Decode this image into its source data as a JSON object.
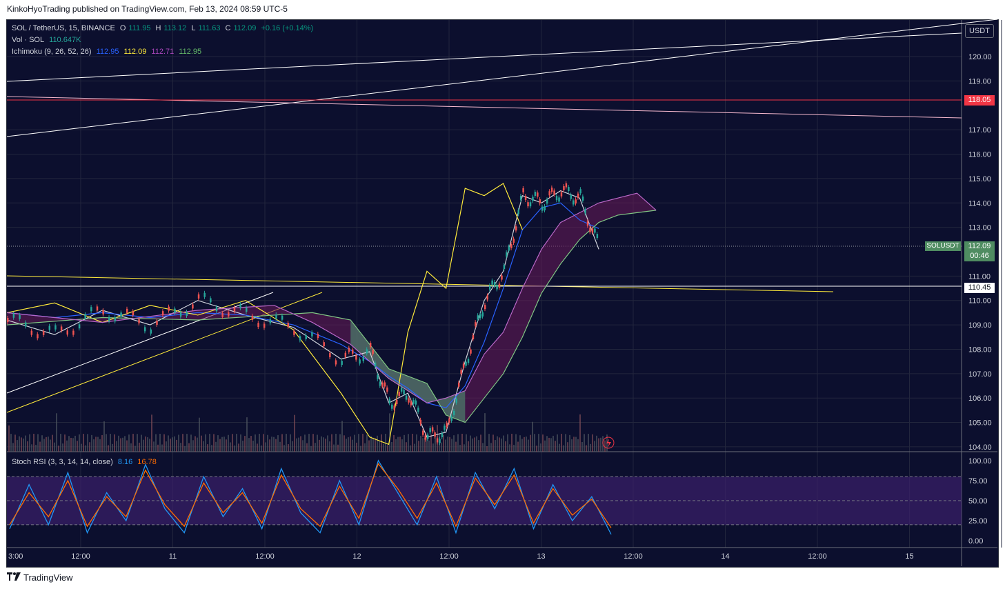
{
  "header": {
    "credit": "KinkoHyoTrading published on TradingView.com, Feb 13, 2024 08:59 UTC-5"
  },
  "legend": {
    "symbol": "SOL / TetherUS, 15, BINANCE",
    "o_label": "O",
    "o_value": "111.95",
    "h_label": "H",
    "h_value": "113.12",
    "l_label": "L",
    "l_value": "111.63",
    "c_label": "C",
    "c_value": "112.09",
    "change": "+0.16 (+0.14%)",
    "vol_label": "Vol · SOL",
    "vol_value": "110.647K",
    "ichimoku_label": "Ichimoku (9, 26, 52, 26)",
    "ichimoku_values": [
      "112.95",
      "112.09",
      "112.71",
      "112.95"
    ],
    "stoch_label": "Stoch RSI (3, 3, 14, 14, close)",
    "stoch_k": "8.16",
    "stoch_d": "16.78"
  },
  "currency_button": "USDT",
  "symbol_tag": "SOLUSDT",
  "badges": {
    "red_level": "118.05",
    "last_price": "112.09",
    "countdown": "00:46",
    "white_level": "110.45"
  },
  "footer": {
    "brand": "TradingView"
  },
  "chart_data": [
    {
      "type": "line",
      "title": "SOL / TetherUS, 15, BINANCE",
      "ylim": [
        103.8,
        121.5
      ],
      "y_ticks": [
        "120.00",
        "119.00",
        "117.00",
        "116.00",
        "115.00",
        "114.00",
        "113.00",
        "111.00",
        "110.00",
        "109.00",
        "108.00",
        "107.00",
        "106.00",
        "105.00",
        "104.00"
      ],
      "x_ticks": [
        "3:00",
        "12:00",
        "11",
        "12:00",
        "12",
        "12:00",
        "13",
        "12:00",
        "14",
        "12:00",
        "15"
      ],
      "grid": true,
      "series": [
        {
          "name": "price",
          "x": [
            0,
            0.05,
            0.1,
            0.15,
            0.2,
            0.25,
            0.3,
            0.35,
            0.38,
            0.4,
            0.42,
            0.44,
            0.46,
            0.48,
            0.5,
            0.52,
            0.54,
            0.56,
            0.58,
            0.6,
            0.62
          ],
          "values": [
            109.2,
            108.6,
            109.6,
            109.0,
            110.0,
            109.4,
            108.9,
            107.6,
            107.9,
            105.8,
            106.2,
            104.4,
            104.6,
            107.5,
            110.0,
            111.2,
            114.3,
            114.0,
            114.5,
            114.2,
            112.1
          ]
        },
        {
          "name": "kijun",
          "x": [
            0,
            0.05,
            0.1,
            0.15,
            0.2,
            0.25,
            0.3,
            0.35,
            0.38,
            0.4,
            0.42,
            0.44,
            0.46,
            0.48,
            0.5,
            0.52,
            0.54,
            0.56,
            0.58,
            0.6,
            0.62
          ],
          "values": [
            109.5,
            109.3,
            109.5,
            109.3,
            109.5,
            109.4,
            109.0,
            108.2,
            107.5,
            106.9,
            106.4,
            105.8,
            105.6,
            106.5,
            108.3,
            110.5,
            112.9,
            113.8,
            114.0,
            113.3,
            112.95
          ]
        },
        {
          "name": "lagging",
          "x": [
            0,
            0.05,
            0.1,
            0.15,
            0.2,
            0.25,
            0.3,
            0.35,
            0.38,
            0.4,
            0.42,
            0.44,
            0.46,
            0.48,
            0.5,
            0.52,
            0.54
          ],
          "values": [
            109.5,
            109.9,
            109.1,
            109.8,
            109.4,
            110.0,
            108.8,
            106.2,
            104.4,
            104.1,
            108.7,
            111.2,
            110.5,
            114.6,
            114.3,
            114.8,
            112.9
          ]
        },
        {
          "name": "senkou_a",
          "x": [
            0,
            0.1,
            0.2,
            0.28,
            0.32,
            0.36,
            0.4,
            0.44,
            0.46,
            0.48,
            0.5,
            0.52,
            0.54,
            0.56,
            0.58,
            0.6,
            0.62,
            0.64,
            0.66,
            0.68
          ],
          "values": [
            109.0,
            109.3,
            109.2,
            109.4,
            109.5,
            109.2,
            107.2,
            106.6,
            105.3,
            105.0,
            106.0,
            107.0,
            108.5,
            110.3,
            111.5,
            112.5,
            113.2,
            113.5,
            113.6,
            113.7
          ]
        },
        {
          "name": "senkou_b",
          "x": [
            0,
            0.1,
            0.2,
            0.28,
            0.32,
            0.36,
            0.4,
            0.44,
            0.46,
            0.48,
            0.5,
            0.52,
            0.54,
            0.56,
            0.58,
            0.6,
            0.62,
            0.64,
            0.66,
            0.68
          ],
          "values": [
            109.5,
            109.1,
            109.6,
            109.8,
            109.1,
            108.2,
            106.8,
            105.8,
            106.0,
            106.3,
            107.8,
            108.7,
            110.5,
            112.1,
            113.2,
            113.6,
            114.0,
            114.2,
            114.4,
            113.7
          ]
        }
      ]
    },
    {
      "type": "line",
      "title": "Stoch RSI (3, 3, 14, 14, close)",
      "ylim": [
        -5,
        105
      ],
      "y_ticks": [
        "100.00",
        "75.00",
        "50.00",
        "25.00",
        "0.00"
      ],
      "bands": [
        20,
        50,
        80
      ],
      "series": [
        {
          "name": "K",
          "values": [
            15,
            70,
            20,
            85,
            10,
            60,
            25,
            95,
            40,
            10,
            80,
            30,
            65,
            15,
            90,
            35,
            10,
            75,
            20,
            100,
            60,
            20,
            80,
            10,
            85,
            40,
            90,
            15,
            70,
            25,
            55,
            8
          ]
        },
        {
          "name": "D",
          "values": [
            20,
            60,
            30,
            75,
            18,
            55,
            30,
            88,
            45,
            18,
            72,
            35,
            60,
            22,
            82,
            40,
            18,
            68,
            28,
            96,
            65,
            28,
            72,
            18,
            78,
            45,
            82,
            22,
            65,
            32,
            52,
            16
          ]
        }
      ]
    }
  ],
  "colors": {
    "background": "#0c0f2e",
    "grid": "#22263d",
    "price_line": "#d1d4dc",
    "kijun": "#2962ff",
    "lagging": "#ffeb3b",
    "cloud_bear": "#6a1b5a",
    "cloud_bull": "#4c7a6a",
    "stoch_k": "#2196f3",
    "stoch_d": "#ff6d00",
    "red_badge": "#f23645",
    "green_badge": "#4f8c61"
  },
  "icons": [
    "tradingview-logo-icon",
    "lightning-icon"
  ]
}
